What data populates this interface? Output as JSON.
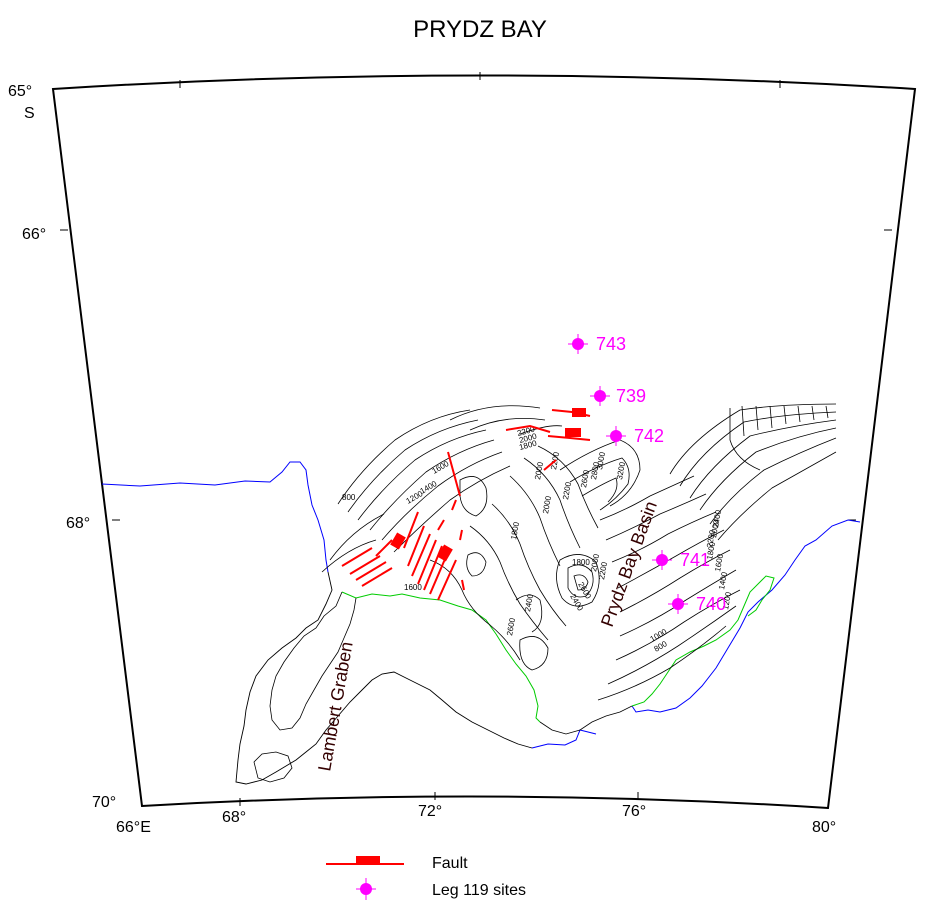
{
  "title": "PRYDZ BAY",
  "latitude_labels": [
    {
      "deg": "65°",
      "hemi": "S"
    },
    {
      "deg": "66°"
    },
    {
      "deg": "68°"
    },
    {
      "deg": "70°"
    }
  ],
  "longitude_labels": [
    "66°E",
    "68°",
    "72°",
    "76°",
    "80°"
  ],
  "features": {
    "lambert_graben": "Lambert Graben",
    "prydz_bay_basin": "Prydz Bay Basin"
  },
  "sites": [
    {
      "id": "743"
    },
    {
      "id": "739"
    },
    {
      "id": "742"
    },
    {
      "id": "741"
    },
    {
      "id": "740"
    }
  ],
  "contour_labels": [
    "800",
    "1200",
    "1400",
    "1600",
    "1800",
    "2000",
    "2200",
    "2000",
    "2200",
    "1800",
    "1600",
    "2000",
    "2200",
    "2400",
    "2600",
    "2600",
    "2800",
    "3000",
    "3200",
    "1800",
    "2000",
    "2200",
    "2400",
    "2600",
    "2400",
    "2200",
    "2000",
    "1800",
    "1600",
    "1400",
    "1200",
    "1000",
    "800"
  ],
  "legend": {
    "fault_label": "Fault",
    "sites_label": "Leg 119 sites"
  },
  "colors": {
    "site": "#ff00ff",
    "fault": "#ff0000",
    "coastline": "#0000ff",
    "ice_edge": "#00cc00",
    "frame": "#000000"
  }
}
